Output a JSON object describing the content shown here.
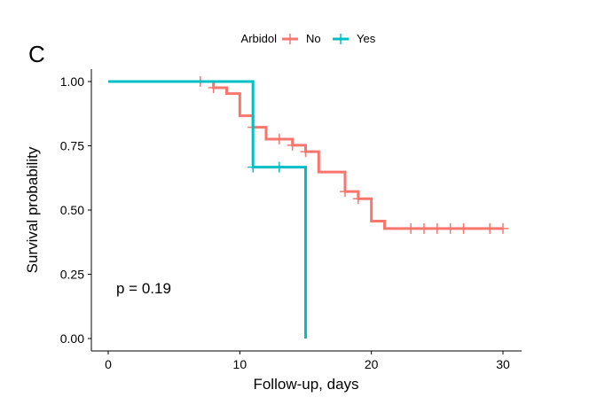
{
  "chart_data": {
    "type": "line",
    "panel_label": "C",
    "xlabel": "Follow-up, days",
    "ylabel": "Survival probability",
    "xlim": [
      0,
      30
    ],
    "ylim": [
      0,
      1
    ],
    "x_ticks": [
      0,
      10,
      20,
      30
    ],
    "y_ticks": [
      0.0,
      0.25,
      0.5,
      0.75,
      1.0
    ],
    "y_tick_labels": [
      "0.00",
      "0.25",
      "0.50",
      "0.75",
      "1.00"
    ],
    "grid": false,
    "legend": {
      "title": "Arbidol",
      "placement": "top"
    },
    "annotation": "p = 0.19",
    "series": [
      {
        "name": "No",
        "color": "#F8766D",
        "step_points": [
          [
            0,
            1.0
          ],
          [
            8,
            0.976
          ],
          [
            9,
            0.953
          ],
          [
            10,
            0.867
          ],
          [
            11,
            0.822
          ],
          [
            12,
            0.776
          ],
          [
            14,
            0.752
          ],
          [
            15,
            0.727
          ],
          [
            16,
            0.648
          ],
          [
            18,
            0.572
          ],
          [
            19,
            0.544
          ],
          [
            20,
            0.457
          ],
          [
            21,
            0.428
          ],
          [
            30,
            0.428
          ]
        ],
        "censor_points": [
          [
            7,
            1.0
          ],
          [
            8,
            0.976
          ],
          [
            11,
            0.822
          ],
          [
            13,
            0.776
          ],
          [
            14,
            0.752
          ],
          [
            15,
            0.727
          ],
          [
            18,
            0.572
          ],
          [
            19,
            0.544
          ],
          [
            23,
            0.428
          ],
          [
            24,
            0.428
          ],
          [
            25,
            0.428
          ],
          [
            26,
            0.428
          ],
          [
            27,
            0.428
          ],
          [
            29,
            0.428
          ],
          [
            30,
            0.428
          ]
        ]
      },
      {
        "name": "Yes",
        "color": "#00BFC4",
        "step_points": [
          [
            0,
            1.0
          ],
          [
            11,
            0.667
          ],
          [
            15,
            0.0
          ]
        ],
        "censor_points": [
          [
            11,
            0.667
          ],
          [
            13,
            0.667
          ]
        ]
      }
    ]
  }
}
